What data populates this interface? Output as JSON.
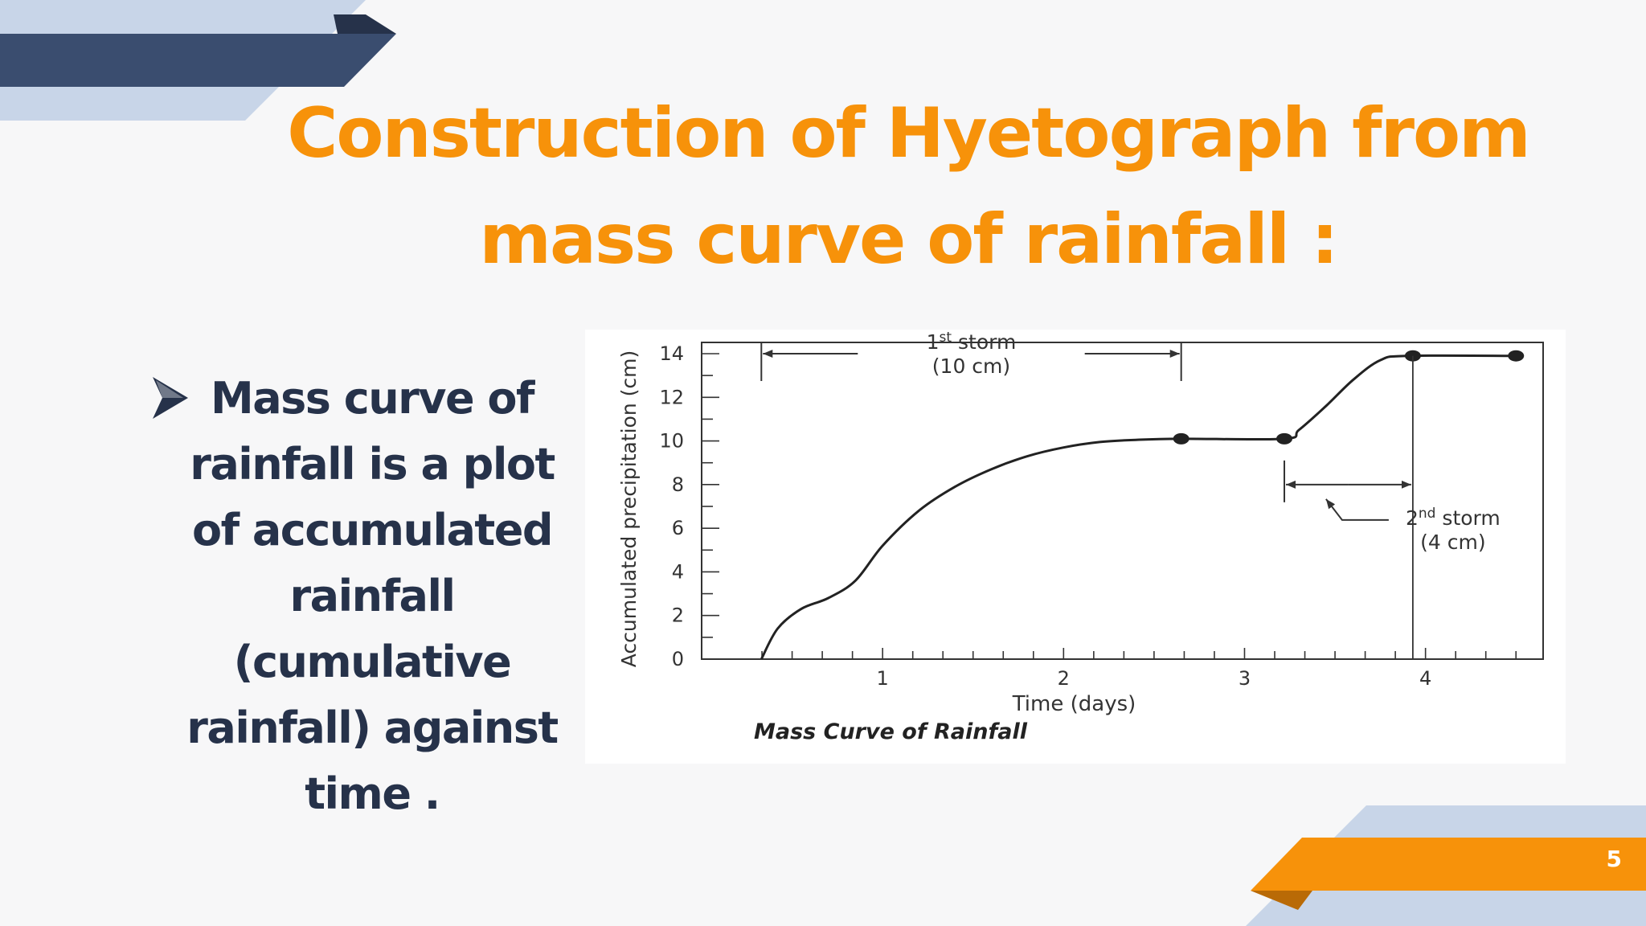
{
  "slide": {
    "title_line1": "Construction of Hyetograph from",
    "title_line2": "mass curve of rainfall :",
    "bullet_text": "Mass curve of rainfall is a plot of accumulated rainfall (cumulative rainfall) against time .",
    "page_number": "5",
    "colors": {
      "accent": "#f7920a",
      "navy": "#3a4d6f",
      "light_blue": "#c8d5e8",
      "text": "#26324a"
    }
  },
  "chart_data": {
    "type": "line",
    "caption": "Mass Curve of Rainfall",
    "xlabel": "Time (days)",
    "ylabel": "Accumulated precipitation (cm)",
    "xlim": [
      0,
      4.65
    ],
    "ylim": [
      0,
      14
    ],
    "x_ticks": [
      1,
      2,
      3,
      4
    ],
    "y_ticks": [
      0,
      2,
      4,
      6,
      8,
      10,
      12,
      14
    ],
    "grid": false,
    "series": [
      {
        "x": [
          0.33,
          0.42,
          0.55,
          0.7,
          0.85,
          1.0,
          1.2,
          1.4,
          1.6,
          1.8,
          2.0,
          2.2,
          2.4,
          2.65,
          3.22,
          3.3,
          3.45,
          3.6,
          3.75,
          3.9,
          4.5
        ],
        "y": [
          0,
          1.4,
          2.3,
          2.8,
          3.6,
          5.2,
          6.8,
          7.9,
          8.7,
          9.3,
          9.7,
          9.95,
          10.05,
          10.1,
          10.1,
          10.5,
          11.6,
          12.8,
          13.7,
          13.9,
          13.9
        ]
      }
    ],
    "markers": [
      {
        "x": 2.65,
        "y": 10.1
      },
      {
        "x": 3.22,
        "y": 10.1
      },
      {
        "x": 3.93,
        "y": 13.9
      },
      {
        "x": 4.5,
        "y": 13.9
      }
    ],
    "annotations": [
      {
        "line1_base": "1",
        "line1_sup": "st",
        "line1_rest": " storm",
        "line2": "(10 cm)",
        "span_x": [
          0.33,
          2.65
        ],
        "y": 14
      },
      {
        "line1_base": "2",
        "line1_sup": "nd",
        "line1_rest": " storm",
        "line2": "(4 cm)",
        "span_x": [
          3.22,
          3.93
        ],
        "y": 8
      }
    ]
  }
}
